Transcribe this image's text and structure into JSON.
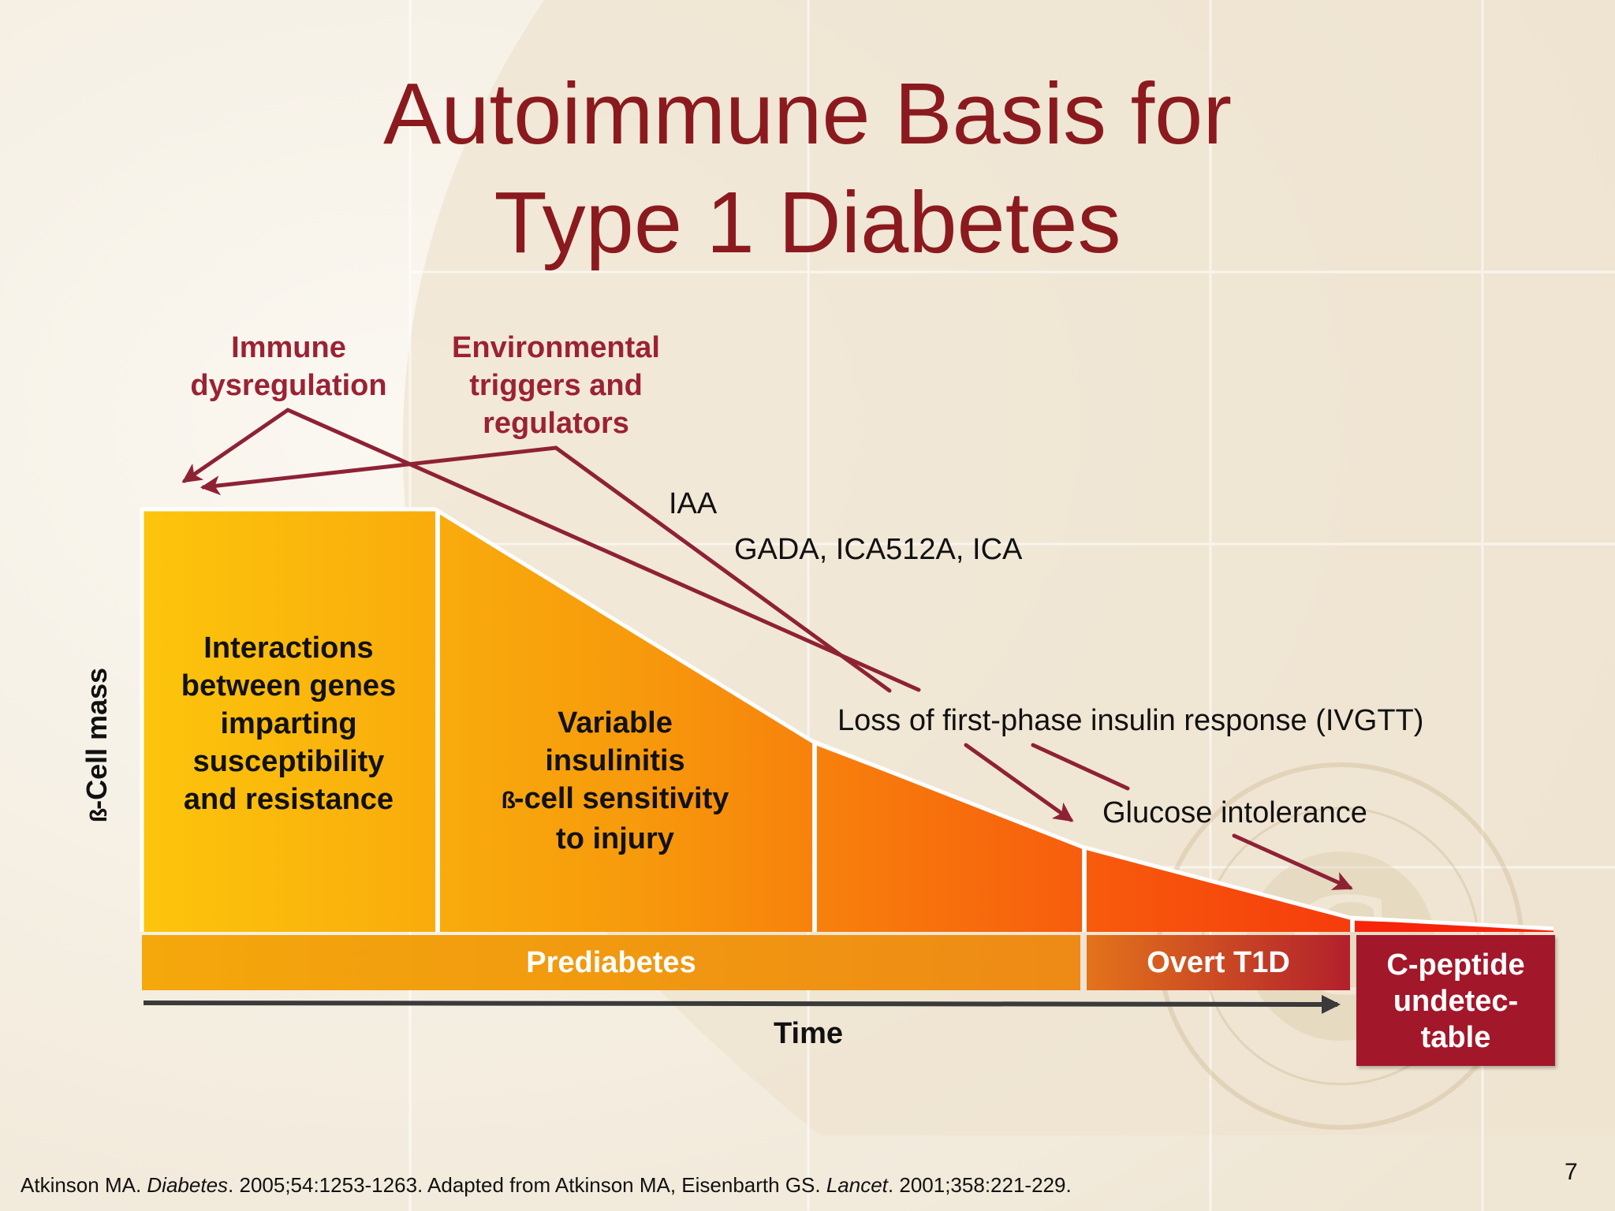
{
  "title": {
    "line1": "Autoimmune Basis for",
    "line2": "Type 1 Diabetes"
  },
  "labels": {
    "immune": [
      "Immune",
      "dysregulation"
    ],
    "environmental": [
      "Environmental",
      "triggers and",
      "regulators"
    ],
    "iaa": "IAA",
    "gada": "GADA, ICA512A, ICA",
    "loss_first_phase": "Loss of first-phase  insulin response (IVGTT)",
    "glucose_intolerance": "Glucose intolerance"
  },
  "segments": {
    "genes": [
      "Interactions",
      "between genes",
      "imparting",
      "susceptibility",
      "and resistance"
    ],
    "insulitis": {
      "line1": "Variable",
      "line2": "insulinitis",
      "beta_glyph": "ß",
      "line3_rest": "-cell sensitivity",
      "line4": "to injury"
    }
  },
  "bands": {
    "prediabetes": "Prediabetes",
    "overt": "Overt T1D",
    "cpeptide": [
      "C-peptide",
      "undetec-",
      "table"
    ]
  },
  "axes": {
    "ylabel_glyph": "ß",
    "ylabel_rest": "-Cell mass",
    "xlabel": "Time"
  },
  "citation": {
    "part1": "Atkinson MA. ",
    "journal1": "Diabetes",
    "part2": ". 2005;54:1253-1263. Adapted from Atkinson MA, Eisenbarth GS. ",
    "journal2": "Lancet",
    "part3": ". 2001;358:221-229."
  },
  "page_number": "7",
  "colors": {
    "title": "#8b1a1f",
    "arrow": "#8e2235",
    "band_cpeptide": "#a3172a"
  }
}
